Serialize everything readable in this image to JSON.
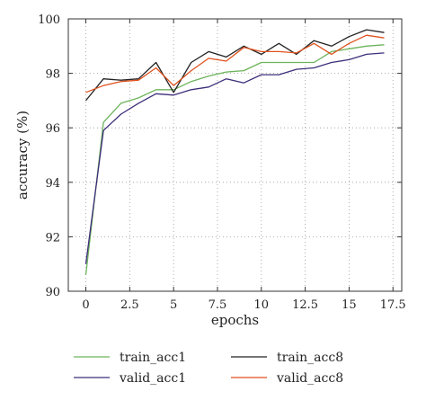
{
  "chart_data": {
    "type": "line",
    "title": "",
    "xlabel": "epochs",
    "ylabel": "accuracy (%)",
    "xlim": [
      -1,
      18
    ],
    "ylim": [
      90,
      100
    ],
    "x_ticks": [
      0,
      2.5,
      5,
      7.5,
      10,
      12.5,
      15,
      17.5
    ],
    "x_tick_labels": [
      "0",
      "2.5",
      "5",
      "7.5",
      "10",
      "12.5",
      "15",
      "17.5"
    ],
    "y_ticks": [
      90,
      92,
      94,
      96,
      98,
      100
    ],
    "y_tick_labels": [
      "90",
      "92",
      "94",
      "96",
      "98",
      "100"
    ],
    "grid": true,
    "legend_position": "bottom",
    "x": [
      0,
      1,
      2,
      3,
      4,
      5,
      6,
      7,
      8,
      9,
      10,
      11,
      12,
      13,
      14,
      15,
      16,
      17
    ],
    "series": [
      {
        "name": "train_acc1",
        "color": "#6cb35a",
        "values": [
          90.6,
          96.2,
          96.9,
          97.1,
          97.4,
          97.4,
          97.7,
          97.9,
          98.05,
          98.1,
          98.4,
          98.4,
          98.4,
          98.4,
          98.8,
          98.9,
          99.0,
          99.05
        ]
      },
      {
        "name": "train_acc8",
        "color": "#222222",
        "values": [
          97.0,
          97.8,
          97.75,
          97.8,
          98.4,
          97.3,
          98.4,
          98.8,
          98.6,
          99.0,
          98.7,
          99.1,
          98.7,
          99.2,
          99.0,
          99.35,
          99.6,
          99.5
        ]
      },
      {
        "name": "valid_acc1",
        "color": "#3d2d7a",
        "values": [
          91.0,
          95.9,
          96.5,
          96.9,
          97.25,
          97.2,
          97.4,
          97.5,
          97.8,
          97.65,
          97.95,
          97.95,
          98.15,
          98.2,
          98.4,
          98.5,
          98.7,
          98.75
        ]
      },
      {
        "name": "valid_acc8",
        "color": "#e0521e",
        "values": [
          97.3,
          97.55,
          97.7,
          97.75,
          98.2,
          97.55,
          98.1,
          98.55,
          98.45,
          98.95,
          98.8,
          98.8,
          98.75,
          99.1,
          98.7,
          99.1,
          99.4,
          99.3
        ]
      }
    ],
    "legend": {
      "columns": [
        [
          "train_acc1",
          "valid_acc1"
        ],
        [
          "train_acc8",
          "valid_acc8"
        ]
      ]
    }
  }
}
